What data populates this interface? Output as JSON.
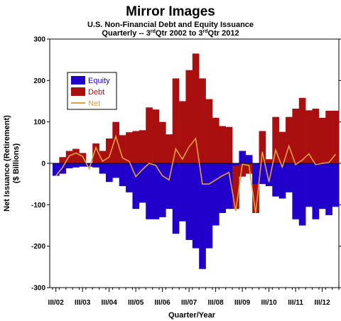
{
  "chart_data": {
    "type": "bar",
    "title": "Mirror Images",
    "subtitle": "U.S. Non-Financial Debt and Equity Issuance",
    "subtitle2_prefix": "Quarterly -- 3",
    "subtitle2_sup1": "rd",
    "subtitle2_mid": "Qtr 2002 to 3",
    "subtitle2_sup2": "rd",
    "subtitle2_suffix": "Qtr 2012",
    "ylabel": "Net Issuance (Retirement)",
    "ylabel2": "($ Billions)",
    "xlabel": "Quarter/Year",
    "ylim": [
      -300,
      300
    ],
    "yticks": [
      -300,
      -200,
      -100,
      0,
      100,
      200,
      300
    ],
    "xtick_labels": [
      "III/02",
      "III/03",
      "III/04",
      "III/05",
      "III/06",
      "III/07",
      "III/08",
      "III/09",
      "III/10",
      "III/11",
      "III/12"
    ],
    "legend_position": "top-left",
    "colors": {
      "equity": "#2200cc",
      "debt": "#aa0f0f",
      "net": "#e0a040"
    },
    "series": [
      {
        "name": "Equity",
        "values": [
          -30,
          -25,
          -12,
          -10,
          -8,
          -8,
          -10,
          -25,
          -45,
          -35,
          -55,
          -70,
          -110,
          -95,
          -135,
          -135,
          -130,
          -110,
          -170,
          -140,
          -185,
          -205,
          -255,
          -205,
          -150,
          -120,
          -110,
          -5,
          30,
          20,
          -50,
          -50,
          -55,
          -80,
          -85,
          -70,
          -135,
          -150,
          -105,
          -135,
          -110,
          -125,
          -105
        ]
      },
      {
        "name": "Debt",
        "values": [
          0,
          15,
          30,
          35,
          25,
          -5,
          48,
          30,
          60,
          100,
          68,
          75,
          78,
          80,
          135,
          130,
          100,
          70,
          205,
          150,
          225,
          265,
          205,
          155,
          110,
          90,
          88,
          -110,
          -32,
          -25,
          -120,
          78,
          10,
          112,
          76,
          112,
          132,
          158,
          128,
          132,
          110,
          127,
          127
        ]
      },
      {
        "name": "Net",
        "values": [
          -30,
          -10,
          18,
          25,
          17,
          -13,
          38,
          5,
          15,
          65,
          13,
          5,
          -32,
          -15,
          0,
          -5,
          -30,
          -40,
          35,
          10,
          40,
          60,
          -50,
          -50,
          -40,
          -30,
          -22,
          -115,
          -2,
          -5,
          -120,
          28,
          -45,
          32,
          -9,
          42,
          -3,
          8,
          23,
          -3,
          0,
          2,
          22
        ]
      }
    ]
  }
}
